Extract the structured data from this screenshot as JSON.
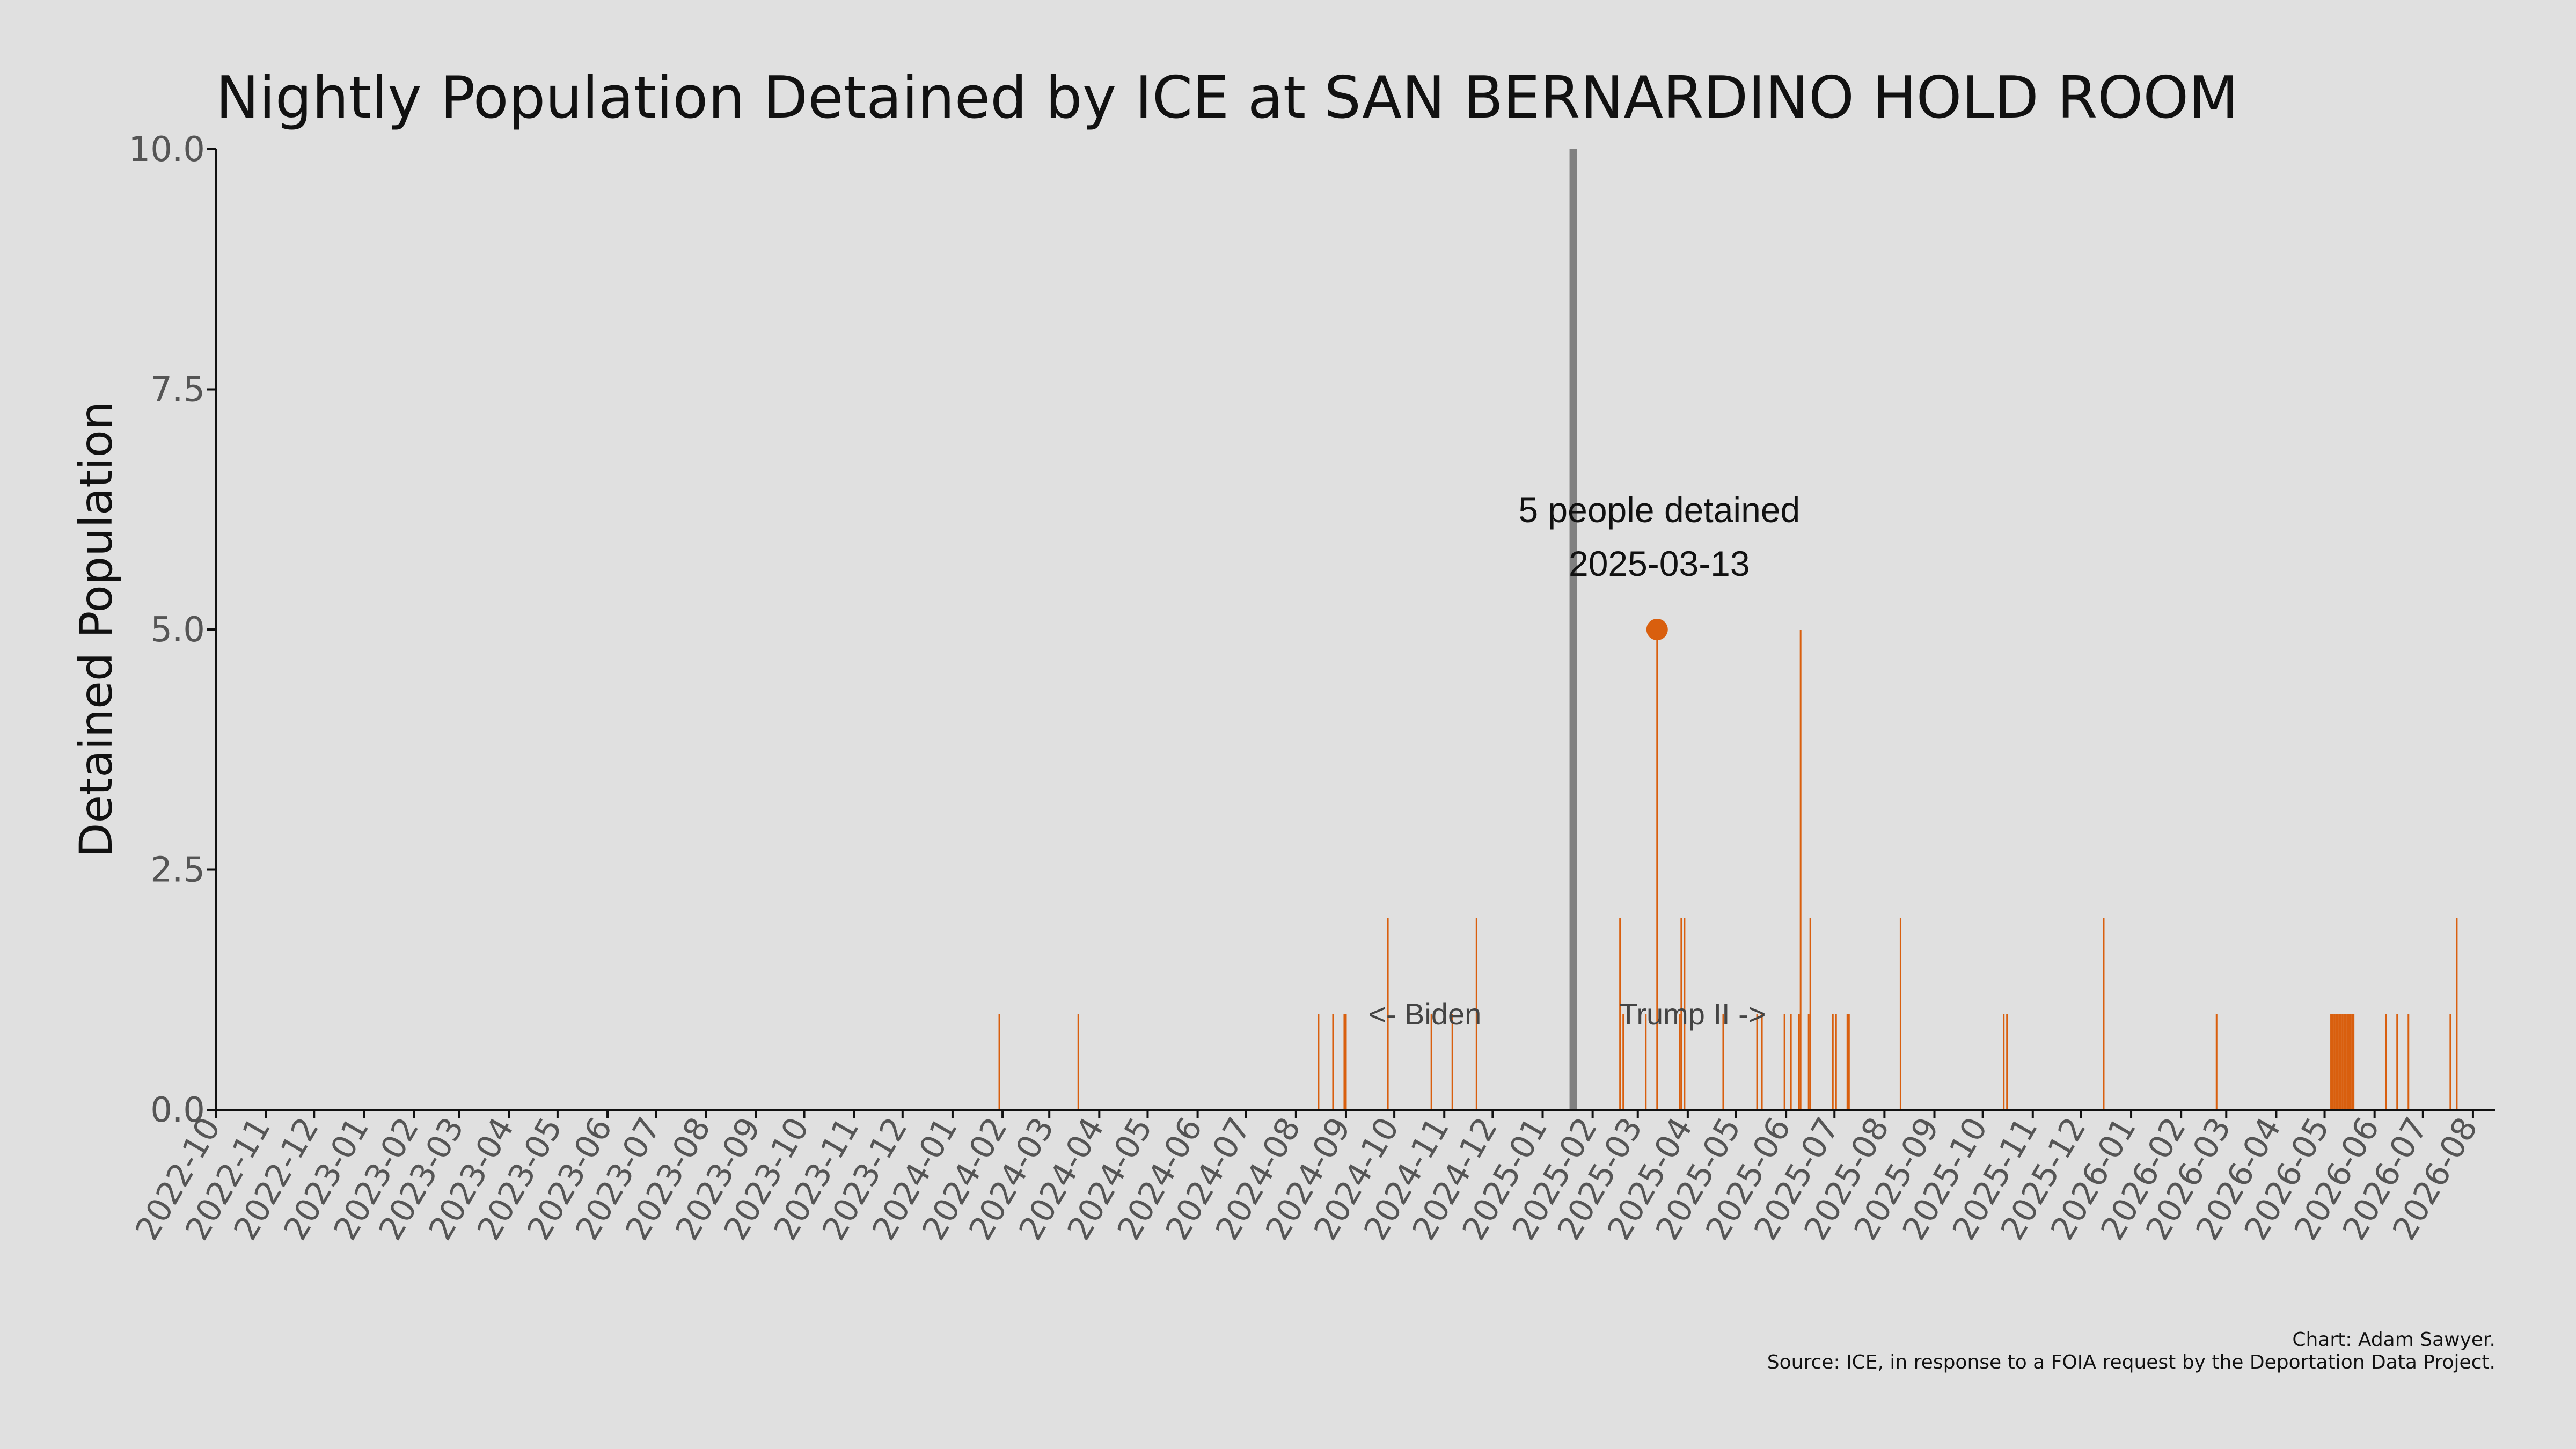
{
  "chart_data": {
    "type": "bar",
    "title": "Nightly Population Detained by ICE at SAN BERNARDINO HOLD ROOM",
    "xlabel": "",
    "ylabel": "Detained Population",
    "ylim": [
      0,
      10
    ],
    "yticks": [
      "0.0",
      "2.5",
      "5.0",
      "7.5",
      "10.0"
    ],
    "xlim": [
      "2022-10-01",
      "2026-08-15"
    ],
    "xticks": [
      "2022-10",
      "2022-11",
      "2022-12",
      "2023-01",
      "2023-02",
      "2023-03",
      "2023-04",
      "2023-05",
      "2023-06",
      "2023-07",
      "2023-08",
      "2023-09",
      "2023-10",
      "2023-11",
      "2023-12",
      "2024-01",
      "2024-02",
      "2024-03",
      "2024-04",
      "2024-05",
      "2024-06",
      "2024-07",
      "2024-08",
      "2024-09",
      "2024-10",
      "2024-11",
      "2024-12",
      "2025-01",
      "2025-02",
      "2025-03",
      "2025-04",
      "2025-05",
      "2025-06",
      "2025-07",
      "2025-08",
      "2025-09",
      "2025-10",
      "2025-11",
      "2025-12",
      "2026-01",
      "2026-02",
      "2026-03",
      "2026-04",
      "2026-05",
      "2026-06",
      "2026-07",
      "2026-08"
    ],
    "grid": false,
    "bar_color": "#d95f0e",
    "divider_color": "#808080",
    "points": [
      {
        "date": "2024-01-30",
        "value": 1
      },
      {
        "date": "2024-03-19",
        "value": 1
      },
      {
        "date": "2024-08-15",
        "value": 1
      },
      {
        "date": "2024-08-24",
        "value": 1
      },
      {
        "date": "2024-08-31",
        "value": 1
      },
      {
        "date": "2024-09-01",
        "value": 1
      },
      {
        "date": "2024-09-27",
        "value": 2
      },
      {
        "date": "2024-10-24",
        "value": 1
      },
      {
        "date": "2024-11-06",
        "value": 1
      },
      {
        "date": "2024-11-21",
        "value": 2
      },
      {
        "date": "2025-02-18",
        "value": 2
      },
      {
        "date": "2025-02-20",
        "value": 1
      },
      {
        "date": "2025-03-06",
        "value": 1
      },
      {
        "date": "2025-03-13",
        "value": 5
      },
      {
        "date": "2025-03-27",
        "value": 1
      },
      {
        "date": "2025-03-28",
        "value": 2
      },
      {
        "date": "2025-03-30",
        "value": 2
      },
      {
        "date": "2025-04-23",
        "value": 1
      },
      {
        "date": "2025-05-14",
        "value": 1
      },
      {
        "date": "2025-05-17",
        "value": 1
      },
      {
        "date": "2025-05-31",
        "value": 1
      },
      {
        "date": "2025-06-04",
        "value": 1
      },
      {
        "date": "2025-06-09",
        "value": 1
      },
      {
        "date": "2025-06-10",
        "value": 5
      },
      {
        "date": "2025-06-15",
        "value": 1
      },
      {
        "date": "2025-06-16",
        "value": 2
      },
      {
        "date": "2025-06-30",
        "value": 1
      },
      {
        "date": "2025-07-02",
        "value": 1
      },
      {
        "date": "2025-07-09",
        "value": 1
      },
      {
        "date": "2025-07-10",
        "value": 1
      },
      {
        "date": "2025-08-11",
        "value": 2
      },
      {
        "date": "2025-10-14",
        "value": 1
      },
      {
        "date": "2025-10-16",
        "value": 1
      },
      {
        "date": "2025-12-15",
        "value": 2
      },
      {
        "date": "2026-02-23",
        "value": 1
      },
      {
        "date": "2026-05-05",
        "value": 1
      },
      {
        "date": "2026-05-06",
        "value": 1
      },
      {
        "date": "2026-05-07",
        "value": 1
      },
      {
        "date": "2026-05-08",
        "value": 1
      },
      {
        "date": "2026-05-09",
        "value": 1
      },
      {
        "date": "2026-05-10",
        "value": 1
      },
      {
        "date": "2026-05-11",
        "value": 1
      },
      {
        "date": "2026-05-12",
        "value": 1
      },
      {
        "date": "2026-05-13",
        "value": 1
      },
      {
        "date": "2026-05-14",
        "value": 1
      },
      {
        "date": "2026-05-15",
        "value": 1
      },
      {
        "date": "2026-05-16",
        "value": 1
      },
      {
        "date": "2026-05-17",
        "value": 1
      },
      {
        "date": "2026-05-18",
        "value": 1
      },
      {
        "date": "2026-05-19",
        "value": 1
      },
      {
        "date": "2026-06-08",
        "value": 1
      },
      {
        "date": "2026-06-15",
        "value": 1
      },
      {
        "date": "2026-06-22",
        "value": 1
      },
      {
        "date": "2026-07-18",
        "value": 1
      },
      {
        "date": "2026-07-22",
        "value": 2
      }
    ],
    "divider": {
      "date": "2025-01-20"
    },
    "highlight": {
      "date": "2025-03-13",
      "value": 5,
      "label_line1": "5 people detained",
      "label_line2": "2025-03-13"
    },
    "annotations": [
      {
        "text": "<- Biden",
        "date": "2024-10-20",
        "value": 1
      },
      {
        "text": "Trump II ->",
        "date": "2025-04-04",
        "value": 1
      }
    ]
  },
  "credits": {
    "line1": "Chart: Adam Sawyer.",
    "line2": "Source: ICE, in response to a FOIA request by the Deportation Data Project."
  }
}
